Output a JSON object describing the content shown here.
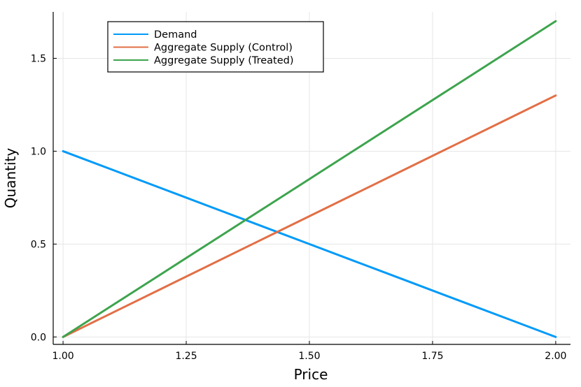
{
  "chart_data": {
    "type": "line",
    "title": "",
    "xlabel": "Price",
    "ylabel": "Quantity",
    "xlim": [
      0.98,
      2.03
    ],
    "ylim": [
      -0.04,
      1.75
    ],
    "xticks": [
      1.0,
      1.25,
      1.5,
      1.75,
      2.0
    ],
    "xtick_labels": [
      "1.00",
      "1.25",
      "1.50",
      "1.75",
      "2.00"
    ],
    "yticks": [
      0.0,
      0.5,
      1.0,
      1.5
    ],
    "ytick_labels": [
      "0.0",
      "0.5",
      "1.0",
      "1.5"
    ],
    "grid": true,
    "legend_position": "top-left",
    "series": [
      {
        "name": "Demand",
        "color": "#009af9",
        "x": [
          1.0,
          1.1,
          1.2,
          1.3,
          1.4,
          1.5,
          1.6,
          1.7,
          1.8,
          1.9,
          2.0
        ],
        "y": [
          1.0,
          0.9,
          0.8,
          0.7,
          0.6,
          0.5,
          0.4,
          0.3,
          0.2,
          0.1,
          0.0
        ]
      },
      {
        "name": "Aggregate Supply (Control)",
        "color": "#e26f46",
        "x": [
          1.0,
          1.1,
          1.2,
          1.3,
          1.4,
          1.5,
          1.6,
          1.7,
          1.8,
          1.9,
          2.0
        ],
        "y": [
          0.0,
          0.13,
          0.26,
          0.39,
          0.52,
          0.65,
          0.78,
          0.91,
          1.04,
          1.17,
          1.3
        ]
      },
      {
        "name": "Aggregate Supply (Treated)",
        "color": "#3da44d",
        "x": [
          1.0,
          1.1,
          1.2,
          1.3,
          1.4,
          1.5,
          1.6,
          1.7,
          1.8,
          1.9,
          2.0
        ],
        "y": [
          0.0,
          0.17,
          0.34,
          0.51,
          0.68,
          0.85,
          1.02,
          1.19,
          1.36,
          1.53,
          1.7
        ]
      }
    ]
  }
}
